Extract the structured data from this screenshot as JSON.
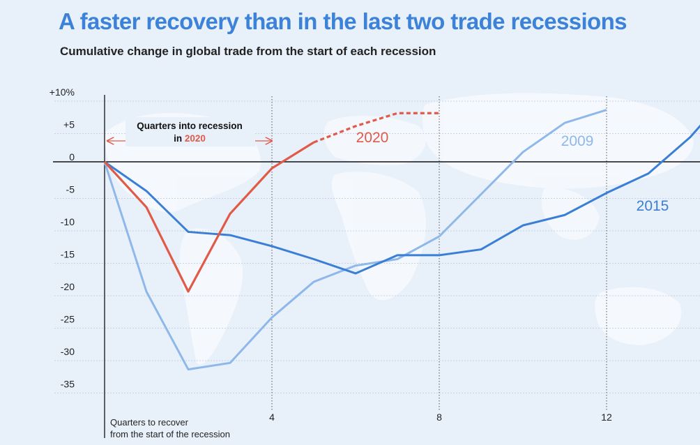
{
  "title": "A faster recovery than in the last two trade recessions",
  "subtitle": "Cumulative change in global trade from the start of each recession",
  "chart_data": {
    "type": "line",
    "title": "A faster recovery than in the last two trade recessions",
    "subtitle": "Cumulative change in global trade from the start of each recession",
    "xlabel": "Quarters to recover from the start of the recession",
    "ylabel": "",
    "xlim": [
      0,
      14.3
    ],
    "ylim": [
      -37,
      10
    ],
    "y_ticks": [
      10,
      5,
      0,
      -5,
      -10,
      -15,
      -20,
      -25,
      -30,
      -35
    ],
    "y_tick_labels": [
      "+10%",
      "+5",
      "0",
      "-5",
      "-10",
      "-15",
      "-20",
      "-25",
      "-30",
      "-35"
    ],
    "x_ticks": [
      4,
      8,
      12
    ],
    "x_tick_labels": [
      "4",
      "8",
      "12"
    ],
    "x_note": [
      "Quarters to recover",
      "from the start of the recession"
    ],
    "annotation": {
      "text_line1": "Quarters into recession",
      "text_prefix": "in ",
      "highlight": "2020"
    },
    "colors": {
      "2020": "#e05a47",
      "2009": "#8fb8ea",
      "2015": "#3a7fd5",
      "title": "#3b82d8"
    },
    "series": [
      {
        "name": "2020",
        "x": [
          0,
          1,
          2,
          3,
          4,
          5
        ],
        "values": [
          0,
          -7,
          -20,
          -8,
          -1,
          3
        ],
        "projected": {
          "x": [
            5,
            6,
            7,
            8
          ],
          "values": [
            3,
            5.5,
            7.5,
            7.5
          ]
        }
      },
      {
        "name": "2009",
        "x": [
          0,
          1,
          2,
          3,
          4,
          5,
          6,
          7,
          8,
          9,
          10,
          11,
          12
        ],
        "values": [
          0,
          -20,
          -32,
          -31,
          -24,
          -18.5,
          -16,
          -15,
          -11.5,
          -5,
          1.5,
          6,
          8
        ]
      },
      {
        "name": "2015",
        "x": [
          0,
          1,
          2,
          3,
          4,
          5,
          6,
          7,
          8,
          9,
          10,
          11,
          12,
          13,
          14,
          14.3
        ],
        "values": [
          0,
          -4.5,
          -10.8,
          -11.3,
          -13,
          -15,
          -17.2,
          -14.4,
          -14.4,
          -13.5,
          -9.8,
          -8.2,
          -4.8,
          -1.8,
          3.8,
          6
        ]
      }
    ]
  }
}
